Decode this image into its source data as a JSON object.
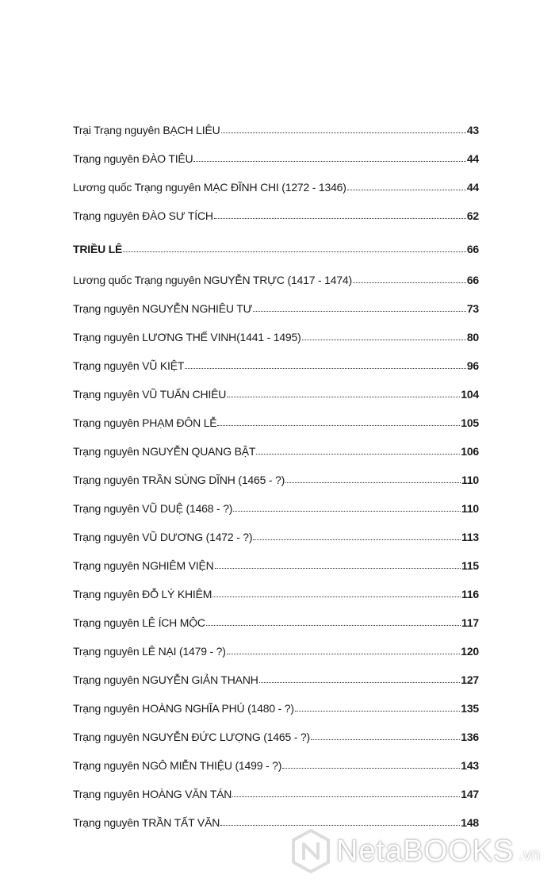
{
  "toc": [
    {
      "title": "Trại Trạng nguyên BẠCH LIÊU",
      "page": "43"
    },
    {
      "title": "Trạng nguyên ĐÀO TIÊU",
      "page": "44"
    },
    {
      "title": "Lương quốc Trạng nguyên MẠC ĐĨNH CHI (1272 - 1346)",
      "page": "44"
    },
    {
      "title": "Trạng nguyên ĐÀO SƯ TÍCH",
      "page": "62"
    },
    {
      "title": "TRIỀU LÊ",
      "page": "66",
      "section": true
    },
    {
      "title": "Lương quốc Trạng nguyên NGUYỄN TRỰC (1417 - 1474)",
      "page": "66"
    },
    {
      "title": "Trạng nguyên NGUYỄN NGHIÊU TƯ",
      "page": "73"
    },
    {
      "title": "Trạng nguyên LƯƠNG THẾ VINH(1441 - 1495)",
      "page": "80"
    },
    {
      "title": "Trạng nguyên VŨ KIỆT",
      "page": "96"
    },
    {
      "title": "Trạng nguyên VŨ TUẤN CHIÊU",
      "page": "104"
    },
    {
      "title": "Trạng nguyên PHẠM ĐÔN LỄ",
      "page": "105"
    },
    {
      "title": "Trạng nguyên NGUYỄN QUANG BẬT",
      "page": "106"
    },
    {
      "title": "Trạng nguyên TRẦN SÙNG DĨNH (1465 - ?)",
      "page": "110"
    },
    {
      "title": "Trạng nguyên VŨ DUỆ (1468 - ?)",
      "page": "110"
    },
    {
      "title": "Trạng nguyên VŨ DƯƠNG (1472 - ?)",
      "page": "113"
    },
    {
      "title": "Trạng nguyên NGHIÊM VIỆN",
      "page": "115"
    },
    {
      "title": "Trạng nguyên ĐỖ LÝ KHIÊM",
      "page": "116"
    },
    {
      "title": "Trạng nguyên LÊ ÍCH MỘC",
      "page": "117"
    },
    {
      "title": "Trạng nguyên LÊ NẠI (1479 - ?)",
      "page": "120"
    },
    {
      "title": "Trạng nguyên NGUYỄN GIẢN THANH",
      "page": "127"
    },
    {
      "title": "Trạng nguyên HOÀNG NGHĨA PHÚ (1480 - ?)",
      "page": "135"
    },
    {
      "title": "Trạng nguyên NGUYỄN ĐỨC LƯỢNG (1465 - ?)",
      "page": "136"
    },
    {
      "title": "Trạng nguyên NGÔ MIỄN THIỆU (1499 - ?)",
      "page": "143"
    },
    {
      "title": "Trạng nguyên HOÀNG VĂN TÁN",
      "page": "147"
    },
    {
      "title": "Trạng nguyên TRẦN TẤT VĂN",
      "page": "148"
    }
  ],
  "watermark": {
    "text": "NetaBOOKS",
    "tld": ".vn",
    "icon": "netabooks-hexagon-logo-icon"
  }
}
